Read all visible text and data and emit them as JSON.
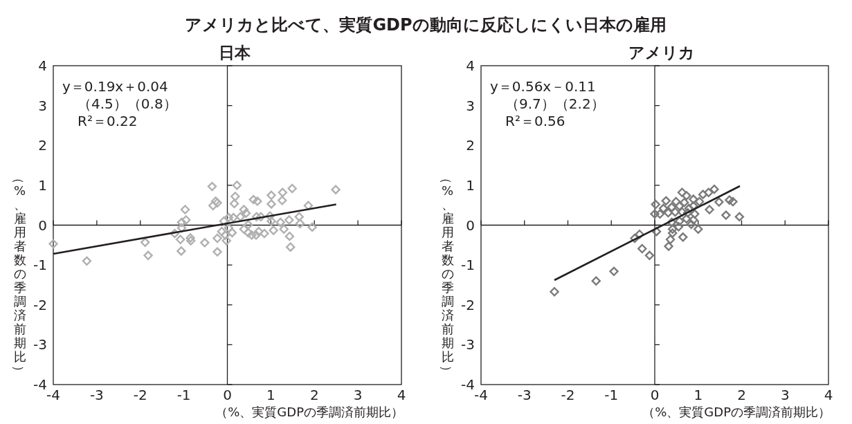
{
  "chart_data": [
    {
      "type": "scatter",
      "title": "アメリカと比べて、実質GDPの動向に反応しにくい日本の雇用",
      "subtitle": "日本",
      "xlabel": "（%、実質GDPの季調済前期比）",
      "ylabel": "（%、雇用者数の季調済前期比）",
      "xlim": [
        -4,
        4
      ],
      "ylim": [
        -4,
        4
      ],
      "xticks": [
        -4,
        -3,
        -2,
        -1,
        0,
        1,
        2,
        3,
        4
      ],
      "yticks": [
        -4,
        -3,
        -2,
        -1,
        0,
        1,
        2,
        3,
        4
      ],
      "annotations": [
        "y＝0.19x＋0.04",
        "（4.5）（0.8）",
        "R²＝0.22"
      ],
      "series": [
        {
          "type": "scatter",
          "marker": "diamond",
          "color": "#b0b0b0",
          "x": [
            -4.0,
            -3.23,
            -1.89,
            -1.82,
            -1.21,
            -1.08,
            -1.06,
            -1.05,
            -1.05,
            -0.97,
            -0.95,
            -0.85,
            -0.84,
            -0.52,
            -0.35,
            -0.33,
            -0.27,
            -0.23,
            -0.23,
            -0.23,
            -0.13,
            -0.08,
            -0.05,
            -0.02,
            0.03,
            0.11,
            0.03,
            0.14,
            0.16,
            0.18,
            0.22,
            0.3,
            0.38,
            0.38,
            0.43,
            0.48,
            0.48,
            0.56,
            0.6,
            0.66,
            0.67,
            0.69,
            0.72,
            0.77,
            0.85,
            0.98,
            1.01,
            1.01,
            1.01,
            1.06,
            1.22,
            1.26,
            1.27,
            1.3,
            1.42,
            1.43,
            1.45,
            1.49,
            1.65,
            1.67,
            1.86,
            1.95,
            2.49
          ],
          "values": [
            -0.47,
            -0.9,
            -0.43,
            -0.76,
            -0.21,
            -0.36,
            -0.65,
            0.07,
            -0.07,
            0.39,
            0.13,
            -0.32,
            -0.39,
            -0.44,
            0.97,
            0.49,
            0.6,
            0.56,
            -0.33,
            -0.67,
            -0.16,
            0.1,
            -0.25,
            -0.39,
            -0.07,
            -0.19,
            0.19,
            0.19,
            0.54,
            0.72,
            1.0,
            0.21,
            0.39,
            -0.1,
            0.3,
            0.01,
            -0.19,
            -0.25,
            0.64,
            -0.25,
            0.21,
            0.6,
            -0.16,
            0.21,
            -0.21,
            0.23,
            0.75,
            0.53,
            0.1,
            -0.13,
            0.07,
            0.62,
            0.82,
            -0.1,
            0.13,
            -0.28,
            -0.55,
            0.92,
            0.21,
            0.04,
            0.49,
            -0.05,
            0.89
          ]
        },
        {
          "type": "line",
          "marker": "none",
          "color": "#231f20",
          "x": [
            -4,
            2.5
          ],
          "values": [
            -0.72,
            0.52
          ]
        }
      ]
    },
    {
      "type": "scatter",
      "subtitle": "アメリカ",
      "xlabel": "（%、実質GDPの季調済前期比）",
      "ylabel": "（%、雇用者数の季調済前期比）",
      "xlim": [
        -4,
        4
      ],
      "ylim": [
        -4,
        4
      ],
      "xticks": [
        -4,
        -3,
        -2,
        -1,
        0,
        1,
        2,
        3,
        4
      ],
      "yticks": [
        -4,
        -3,
        -2,
        -1,
        0,
        1,
        2,
        3,
        4
      ],
      "annotations": [
        "y＝0.56x－0.11",
        "（9.7）（2.2）",
        "R²＝0.56"
      ],
      "series": [
        {
          "type": "scatter",
          "marker": "diamond",
          "color": "#7a7a7a",
          "x": [
            -2.31,
            -1.35,
            -0.94,
            -0.46,
            -0.35,
            -0.29,
            -0.12,
            0.04,
            0.02,
            0.0,
            0.12,
            0.26,
            0.31,
            0.2,
            0.39,
            0.49,
            0.63,
            0.73,
            0.89,
            1.11,
            1.24,
            1.37,
            0.57,
            0.68,
            0.79,
            0.89,
            1.03,
            0.47,
            0.63,
            0.76,
            0.92,
            0.39,
            0.57,
            0.73,
            0.89,
            0.41,
            0.55,
            0.84,
            1.0,
            0.41,
            0.36,
            0.65,
            0.32,
            1.26,
            1.48,
            1.72,
            1.8,
            1.64,
            1.95
          ],
          "values": [
            -1.67,
            -1.4,
            -1.16,
            -0.33,
            -0.23,
            -0.59,
            -0.76,
            -0.16,
            0.52,
            0.28,
            0.28,
            0.61,
            0.31,
            0.42,
            0.45,
            0.59,
            0.82,
            0.74,
            0.65,
            0.77,
            0.82,
            0.9,
            0.48,
            0.57,
            0.42,
            0.48,
            0.59,
            0.33,
            0.33,
            0.31,
            0.28,
            0.07,
            0.1,
            0.16,
            0.13,
            -0.1,
            -0.04,
            0.02,
            -0.1,
            -0.2,
            -0.36,
            -0.3,
            -0.53,
            0.39,
            0.58,
            0.63,
            0.59,
            0.25,
            0.21
          ]
        },
        {
          "type": "line",
          "marker": "none",
          "color": "#231f20",
          "x": [
            -2.31,
            1.96
          ],
          "values": [
            -1.38,
            0.98
          ]
        }
      ]
    }
  ]
}
